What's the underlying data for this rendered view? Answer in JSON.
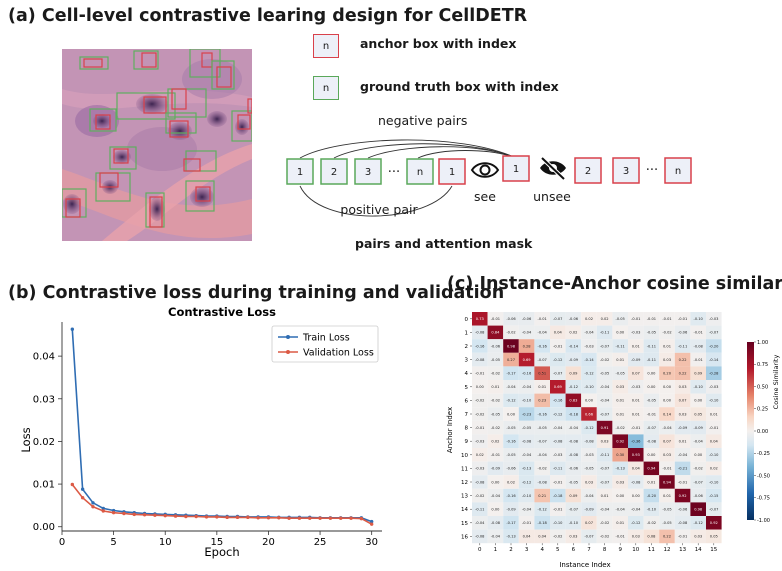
{
  "panel_a": {
    "title": "(a) Cell-level contrastive learing design for CellDETR",
    "legend_anchor_box": "n",
    "legend_anchor_label": "anchor box with index",
    "legend_gt_box": "n",
    "legend_gt_label": "ground truth box with index",
    "negative_pairs_label": "negative pairs",
    "positive_pair_label": "positive pair",
    "mask_caption": "pairs and attention mask",
    "see_label": "see",
    "unsee_label": "unsee",
    "ellipsis": "···",
    "gt_sequence": [
      "1",
      "2",
      "3",
      "n"
    ],
    "anchor_1": "1",
    "anchor_unsee_1": "1",
    "anchor_sequence_right": [
      "2",
      "3",
      "n"
    ],
    "icons": [
      "eye-icon",
      "eye-slash-icon"
    ],
    "colors": {
      "anchor": "#d9414b",
      "ground_truth": "#5aa85a"
    }
  },
  "panel_b": {
    "title": "(b) Contrastive loss during training and validation",
    "chart_data": {
      "type": "line",
      "title": "Contrastive Loss",
      "xlabel": "Epoch",
      "ylabel": "Loss",
      "xlim": [
        0,
        31
      ],
      "ylim": [
        -0.001,
        0.048
      ],
      "xticks": [
        "0",
        "5",
        "10",
        "15",
        "20",
        "25",
        "30"
      ],
      "yticks": [
        "0.00",
        "0.01",
        "0.02",
        "0.03",
        "0.04"
      ],
      "legend": "top-right",
      "series": [
        {
          "name": "Train Loss",
          "color": "#2f6db3",
          "x": [
            1,
            2,
            3,
            4,
            5,
            6,
            7,
            8,
            9,
            10,
            11,
            12,
            13,
            14,
            15,
            16,
            17,
            18,
            19,
            20,
            21,
            22,
            23,
            24,
            25,
            26,
            27,
            28,
            29,
            30
          ],
          "y": [
            0.0463,
            0.0088,
            0.0056,
            0.0043,
            0.0038,
            0.0035,
            0.0033,
            0.0031,
            0.003,
            0.0029,
            0.0028,
            0.0027,
            0.0026,
            0.0025,
            0.0025,
            0.0024,
            0.0024,
            0.0023,
            0.0023,
            0.0023,
            0.0022,
            0.0022,
            0.0022,
            0.0022,
            0.0021,
            0.0021,
            0.0021,
            0.0021,
            0.0021,
            0.0012
          ]
        },
        {
          "name": "Validation Loss",
          "color": "#dc5a45",
          "x": [
            1,
            2,
            3,
            4,
            5,
            6,
            7,
            8,
            9,
            10,
            11,
            12,
            13,
            14,
            15,
            16,
            17,
            18,
            19,
            20,
            21,
            22,
            23,
            24,
            25,
            26,
            27,
            28,
            29,
            30
          ],
          "y": [
            0.0099,
            0.0068,
            0.0047,
            0.0037,
            0.0033,
            0.0031,
            0.0029,
            0.0028,
            0.0027,
            0.0026,
            0.0025,
            0.0024,
            0.0024,
            0.0023,
            0.0023,
            0.0022,
            0.0022,
            0.0022,
            0.0021,
            0.0021,
            0.0021,
            0.002,
            0.002,
            0.002,
            0.002,
            0.002,
            0.002,
            0.002,
            0.0019,
            0.0006
          ]
        }
      ]
    }
  },
  "panel_c": {
    "title": "(c) Instance-Anchor cosine similarity",
    "chart_data": {
      "type": "heatmap",
      "xlabel": "Instance Index",
      "ylabel": "Anchor Index",
      "x_categories": [
        "0",
        "1",
        "2",
        "3",
        "4",
        "5",
        "6",
        "7",
        "8",
        "9",
        "10",
        "11",
        "12",
        "13",
        "14",
        "15"
      ],
      "y_categories": [
        "0",
        "1",
        "2",
        "3",
        "4",
        "5",
        "6",
        "7",
        "8",
        "9",
        "10",
        "11",
        "12",
        "13",
        "14",
        "15",
        "16"
      ],
      "colorbar_label": "Cosine Similarity",
      "colorbar_ticks": [
        "1.00",
        "0.75",
        "0.50",
        "0.25",
        "0.00",
        "-0.25",
        "-0.50",
        "-0.75",
        "-1.00"
      ],
      "vmin": -1.0,
      "vmax": 1.0,
      "values": [
        [
          0.73,
          -0.01,
          -0.06,
          -0.06,
          -0.01,
          -0.07,
          -0.06,
          0.02,
          0.02,
          -0.05,
          -0.01,
          -0.01,
          -0.01,
          -0.01,
          -0.1,
          -0.03
        ],
        [
          -0.08,
          0.84,
          -0.02,
          -0.04,
          -0.04,
          0.04,
          0.02,
          -0.04,
          -0.11,
          -0.0,
          -0.03,
          -0.05,
          -0.02,
          -0.06,
          -0.01,
          -0.07
        ],
        [
          -0.16,
          -0.06,
          0.98,
          0.28,
          -0.16,
          -0.01,
          -0.14,
          -0.03,
          -0.07,
          -0.11,
          0.01,
          -0.11,
          0.01,
          -0.11,
          -0.08,
          -0.2
        ],
        [
          -0.08,
          -0.05,
          0.27,
          0.69,
          -0.07,
          -0.12,
          -0.09,
          -0.14,
          -0.02,
          0.01,
          -0.09,
          -0.11,
          0.03,
          0.22,
          -0.01,
          -0.14
        ],
        [
          -0.01,
          -0.02,
          -0.17,
          -0.16,
          0.51,
          -0.07,
          0.09,
          -0.12,
          -0.05,
          -0.05,
          0.07,
          0.0,
          0.2,
          0.22,
          0.09,
          -0.28
        ],
        [
          0.0,
          0.01,
          -0.04,
          -0.04,
          0.01,
          0.69,
          -0.12,
          -0.1,
          -0.04,
          0.03,
          -0.03,
          -0.0,
          0.0,
          0.03,
          -0.1,
          -0.03
        ],
        [
          -0.02,
          -0.02,
          -0.12,
          -0.1,
          0.23,
          -0.16,
          0.83,
          0.0,
          -0.04,
          0.01,
          0.01,
          -0.05,
          0.0,
          0.07,
          -0.0,
          -0.1
        ],
        [
          -0.02,
          -0.05,
          -0.0,
          -0.23,
          -0.16,
          -0.12,
          -0.18,
          0.66,
          -0.07,
          0.01,
          0.01,
          -0.01,
          0.14,
          0.03,
          0.05,
          0.01
        ],
        [
          -0.01,
          -0.02,
          -0.05,
          -0.05,
          -0.05,
          -0.04,
          -0.04,
          -0.12,
          0.91,
          -0.02,
          -0.01,
          -0.07,
          -0.04,
          -0.09,
          -0.09,
          -0.01
        ],
        [
          -0.03,
          0.02,
          -0.16,
          -0.08,
          -0.07,
          -0.08,
          -0.08,
          -0.08,
          0.03,
          0.92,
          -0.36,
          -0.08,
          0.07,
          0.01,
          -0.04,
          0.04
        ],
        [
          0.02,
          -0.01,
          -0.05,
          -0.04,
          -0.04,
          -0.03,
          -0.08,
          -0.03,
          -0.11,
          0.3,
          0.93,
          -0.0,
          0.03,
          -0.04,
          0.0,
          -0.1
        ],
        [
          -0.03,
          -0.09,
          -0.06,
          -0.13,
          -0.02,
          -0.11,
          -0.06,
          -0.05,
          -0.07,
          -0.13,
          0.04,
          0.94,
          -0.01,
          -0.21,
          -0.02,
          0.02
        ],
        [
          -0.08,
          -0.0,
          0.02,
          -0.12,
          -0.08,
          -0.01,
          -0.05,
          0.03,
          -0.07,
          0.03,
          -0.08,
          0.01,
          0.94,
          -0.01,
          -0.07,
          -0.1
        ],
        [
          -0.02,
          -0.04,
          -0.16,
          -0.1,
          0.21,
          -0.18,
          0.09,
          -0.04,
          0.01,
          -0.0,
          -0.0,
          -0.2,
          0.01,
          0.92,
          -0.06,
          -0.15
        ],
        [
          -0.11,
          0.0,
          -0.09,
          -0.04,
          -0.12,
          -0.01,
          -0.07,
          -0.09,
          -0.04,
          -0.04,
          -0.04,
          -0.1,
          -0.05,
          -0.06,
          0.98,
          -0.07
        ],
        [
          -0.04,
          -0.08,
          -0.17,
          -0.01,
          -0.18,
          -0.1,
          -0.1,
          0.07,
          -0.02,
          0.01,
          -0.12,
          -0.02,
          -0.05,
          -0.08,
          -0.12,
          0.92
        ],
        [
          -0.08,
          -0.04,
          -0.13,
          0.04,
          0.04,
          -0.02,
          0.03,
          -0.07,
          -0.02,
          -0.01,
          0.03,
          0.08,
          0.22,
          -0.01,
          0.03,
          0.05
        ]
      ]
    }
  }
}
